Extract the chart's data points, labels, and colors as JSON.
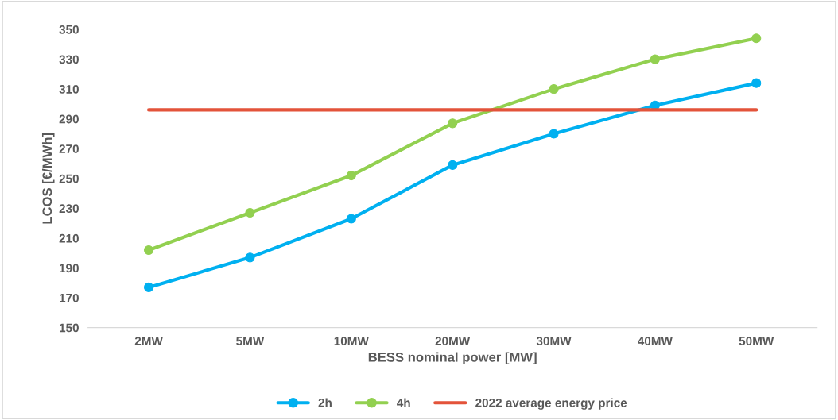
{
  "chart_data": {
    "type": "line",
    "xlabel": "BESS nominal power [MW]",
    "ylabel": "LCOS [€/MWh]",
    "categories": [
      "2MW",
      "5MW",
      "10MW",
      "20MW",
      "30MW",
      "40MW",
      "50MW"
    ],
    "series": [
      {
        "name": "2h",
        "color": "#00b0f0",
        "marker": "circle",
        "values": [
          177,
          197,
          223,
          259,
          280,
          299,
          314
        ]
      },
      {
        "name": "4h",
        "color": "#92d050",
        "marker": "circle",
        "values": [
          202,
          227,
          252,
          287,
          310,
          330,
          344
        ]
      },
      {
        "name": "2022 average energy price",
        "color": "#e3533a",
        "marker": "none",
        "values": [
          296,
          296,
          296,
          296,
          296,
          296,
          296
        ]
      }
    ],
    "ylim": [
      150,
      350
    ],
    "yticks": [
      150,
      170,
      190,
      210,
      230,
      250,
      270,
      290,
      310,
      330,
      350
    ],
    "grid": false,
    "legend": "bottom",
    "line_style": "solid"
  }
}
